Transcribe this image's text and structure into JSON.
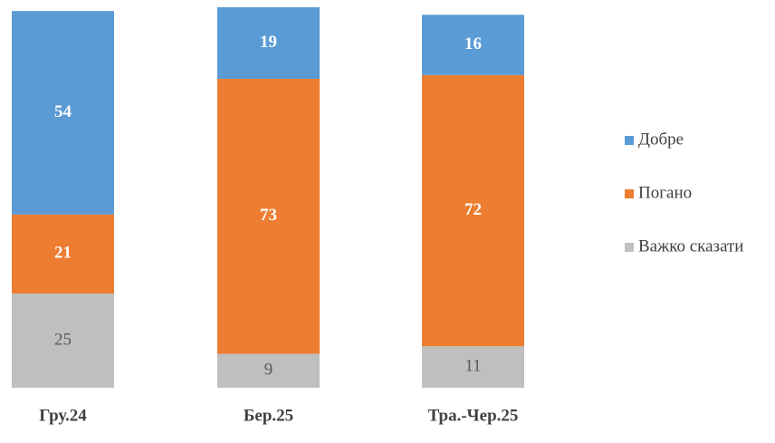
{
  "chart_data": {
    "type": "stacked_bar",
    "categories": [
      "Гру.24",
      "Бер.25",
      "Тра.-Чер.25"
    ],
    "series": [
      {
        "name": "Добре",
        "color": "#5b9bd5",
        "label_color": "#ffffff",
        "values": [
          54,
          19,
          16
        ]
      },
      {
        "name": "Погано",
        "color": "#ed7d31",
        "label_color": "#ffffff",
        "values": [
          21,
          73,
          72
        ]
      },
      {
        "name": "Важко сказати",
        "color": "#bfbfbf",
        "label_color": "#595959",
        "values": [
          25,
          9,
          11
        ]
      }
    ],
    "legend": "right"
  }
}
